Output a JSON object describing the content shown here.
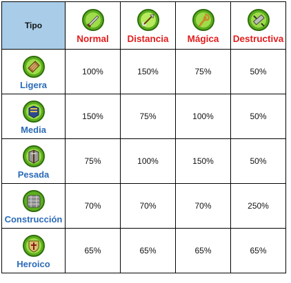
{
  "header": {
    "tipo_label": "Tipo",
    "attack_types": [
      {
        "label": "Normal",
        "icon": "sword-icon"
      },
      {
        "label": "Distancia",
        "icon": "arrow-icon"
      },
      {
        "label": "Mágica",
        "icon": "staff-icon"
      },
      {
        "label": "Destructiva",
        "icon": "siege-icon"
      }
    ]
  },
  "rows": [
    {
      "armor": "Ligera",
      "icon": "light-armor-icon",
      "values": [
        "100%",
        "150%",
        "75%",
        "50%"
      ]
    },
    {
      "armor": "Media",
      "icon": "medium-armor-icon",
      "values": [
        "150%",
        "75%",
        "100%",
        "50%"
      ]
    },
    {
      "armor": "Pesada",
      "icon": "heavy-armor-icon",
      "values": [
        "75%",
        "100%",
        "150%",
        "50%"
      ]
    },
    {
      "armor": "Construcción",
      "icon": "fortified-armor-icon",
      "values": [
        "70%",
        "70%",
        "70%",
        "250%"
      ]
    },
    {
      "armor": "Heroico",
      "icon": "hero-armor-icon",
      "values": [
        "65%",
        "65%",
        "65%",
        "65%"
      ]
    }
  ],
  "colors": {
    "header_bg": "#a9cde8",
    "attack_label": "#e11c1c",
    "armor_label": "#2a6ab8",
    "icon_green": "#5cae1e"
  }
}
